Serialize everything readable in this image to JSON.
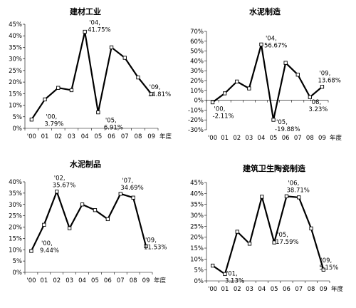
{
  "chart_data": [
    {
      "type": "line",
      "title": "建材工业",
      "categories": [
        "'00",
        "01",
        "02",
        "03",
        "04",
        "05",
        "06",
        "07",
        "08",
        "09"
      ],
      "xlabel": "年度",
      "values": [
        3.79,
        12.5,
        17.5,
        16.5,
        41.75,
        6.91,
        35.0,
        30.5,
        22.0,
        14.81
      ],
      "ylim": [
        0,
        45
      ],
      "yticks": [
        0,
        5,
        10,
        15,
        20,
        25,
        30,
        35,
        40,
        45
      ],
      "ytick_labels": [
        "0%",
        "5%",
        "10%",
        "15%",
        "20%",
        "25%",
        "30%",
        "35%",
        "40%",
        "45%"
      ],
      "annotations": [
        {
          "index": 0,
          "label": "'00,",
          "value_text": "3.79%"
        },
        {
          "index": 4,
          "label": "'04,",
          "value_text": "41.75%"
        },
        {
          "index": 5,
          "label": "'05,",
          "value_text": "6.91%"
        },
        {
          "index": 9,
          "label": "'09,",
          "value_text": "14.81%"
        }
      ]
    },
    {
      "type": "line",
      "title": "水泥制造",
      "categories": [
        "'00",
        "01",
        "02",
        "03",
        "04",
        "05",
        "06",
        "07",
        "08",
        "09"
      ],
      "xlabel": "年度",
      "values": [
        -2.11,
        7.0,
        19.0,
        12.0,
        56.67,
        -19.88,
        38.0,
        26.0,
        3.23,
        13.68
      ],
      "ylim": [
        -30,
        70
      ],
      "yticks": [
        -30,
        -20,
        -10,
        0,
        10,
        20,
        30,
        40,
        50,
        60,
        70
      ],
      "ytick_labels": [
        "-30%",
        "-20%",
        "-10%",
        "0%",
        "10%",
        "20%",
        "30%",
        "40%",
        "50%",
        "60%",
        "70%"
      ],
      "annotations": [
        {
          "index": 0,
          "label": "'00,",
          "value_text": "-2.11%"
        },
        {
          "index": 4,
          "label": "'04,",
          "value_text": "56.67%"
        },
        {
          "index": 5,
          "label": "'05,",
          "value_text": "-19.88%"
        },
        {
          "index": 8,
          "label": "'08,",
          "value_text": "3.23%"
        },
        {
          "index": 9,
          "label": "'09,",
          "value_text": "13.68%"
        }
      ]
    },
    {
      "type": "line",
      "title": "水泥制品",
      "categories": [
        "'00",
        "01",
        "02",
        "03",
        "04",
        "05",
        "06",
        "07",
        "08",
        "09"
      ],
      "xlabel": "年度",
      "values": [
        9.44,
        21.0,
        35.67,
        19.5,
        30.0,
        27.5,
        23.5,
        34.69,
        33.0,
        11.53
      ],
      "ylim": [
        0,
        40
      ],
      "yticks": [
        0,
        5,
        10,
        15,
        20,
        25,
        30,
        35,
        40
      ],
      "ytick_labels": [
        "0%",
        "5%",
        "10%",
        "15%",
        "20%",
        "25%",
        "30%",
        "35%",
        "40%"
      ],
      "annotations": [
        {
          "index": 0,
          "label": "'00,",
          "value_text": "9.44%"
        },
        {
          "index": 2,
          "label": "'02,",
          "value_text": "35.67%"
        },
        {
          "index": 7,
          "label": "'07,",
          "value_text": "34.69%"
        },
        {
          "index": 9,
          "label": "'09,",
          "value_text": "11.53%"
        }
      ]
    },
    {
      "type": "line",
      "title": "建筑卫生陶瓷制造",
      "categories": [
        "'00",
        "01",
        "02",
        "03",
        "04",
        "05",
        "06",
        "07",
        "08",
        "09"
      ],
      "xlabel": "年度",
      "values": [
        7.0,
        3.13,
        22.5,
        17.0,
        38.5,
        17.59,
        38.71,
        38.2,
        24.0,
        5.15
      ],
      "ylim": [
        0,
        45
      ],
      "yticks": [
        0,
        5,
        10,
        15,
        20,
        25,
        30,
        35,
        40,
        45
      ],
      "ytick_labels": [
        "0%",
        "5%",
        "10%",
        "15%",
        "20%",
        "25%",
        "30%",
        "35%",
        "40%",
        "45%"
      ],
      "annotations": [
        {
          "index": 1,
          "label": "'01,",
          "value_text": "3.13%"
        },
        {
          "index": 5,
          "label": "'05,",
          "value_text": "17.59%"
        },
        {
          "index": 6,
          "label": "'06,",
          "value_text": "38.71%"
        },
        {
          "index": 9,
          "label": "'09,",
          "value_text": "5.15%"
        }
      ]
    }
  ]
}
